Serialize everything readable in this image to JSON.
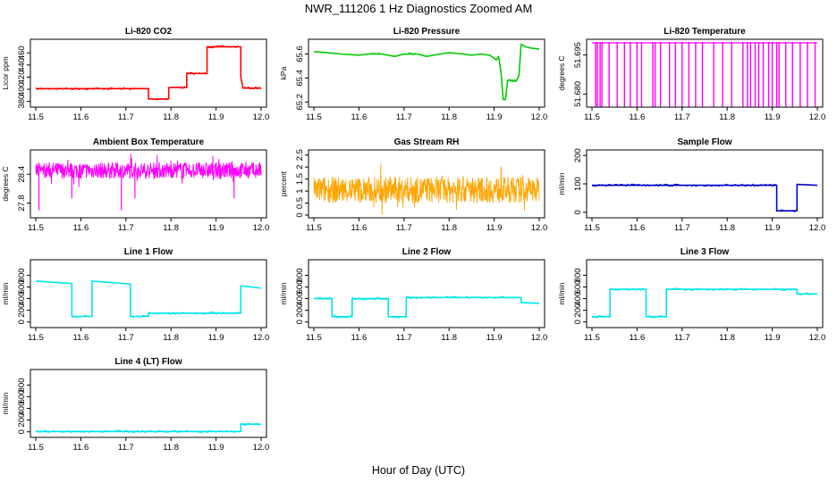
{
  "title": "NWR_111206  1 Hz Diagnostics Zoomed AM",
  "xlabel": "Hour of Day (UTC)",
  "chart_data": [
    {
      "type": "line",
      "title": "Li-820 CO2",
      "ylabel": "Licor ppm",
      "color": "#ff0000",
      "xlim": [
        11.5,
        12.0
      ],
      "ylim": [
        375,
        478
      ],
      "yticks": [
        380,
        400,
        420,
        440,
        460
      ],
      "xticks": [
        11.5,
        11.6,
        11.7,
        11.8,
        11.9,
        12.0
      ],
      "style": "step",
      "series": [
        {
          "name": "CO2",
          "x": [
            11.5,
            11.75,
            11.75,
            11.76,
            11.76,
            11.795,
            11.795,
            11.835,
            11.835,
            11.88,
            11.88,
            11.955,
            11.955,
            11.96,
            11.96,
            12.0
          ],
          "y": [
            401,
            401,
            384,
            384,
            384,
            384,
            403,
            403,
            426,
            426,
            470,
            470,
            420,
            402,
            402,
            402
          ]
        }
      ]
    },
    {
      "type": "line",
      "title": "Li-820 Pressure",
      "ylabel": "kPa",
      "color": "#00cc00",
      "xlim": [
        11.5,
        12.0
      ],
      "ylim": [
        65.18,
        65.7
      ],
      "yticks": [
        65.2,
        65.4,
        65.6
      ],
      "ytick_labels": [
        "65.2",
        "65.4",
        "65.6"
      ],
      "xticks": [
        11.5,
        11.6,
        11.7,
        11.8,
        11.9,
        12.0
      ],
      "series": [
        {
          "name": "pressure",
          "x": [
            11.5,
            11.53,
            11.56,
            11.6,
            11.62,
            11.65,
            11.68,
            11.7,
            11.73,
            11.75,
            11.78,
            11.8,
            11.83,
            11.85,
            11.87,
            11.89,
            11.905,
            11.91,
            11.915,
            11.92,
            11.925,
            11.93,
            11.95,
            11.955,
            11.96,
            11.97,
            11.98,
            12.0
          ],
          "y": [
            65.62,
            65.61,
            65.6,
            65.59,
            65.6,
            65.6,
            65.58,
            65.6,
            65.6,
            65.58,
            65.6,
            65.61,
            65.6,
            65.59,
            65.6,
            65.59,
            65.55,
            65.58,
            65.45,
            65.22,
            65.22,
            65.38,
            65.38,
            65.42,
            65.68,
            65.66,
            65.65,
            65.64
          ]
        }
      ]
    },
    {
      "type": "line",
      "title": "Li-820 Temperature",
      "ylabel": "degrees C",
      "color": "#ff00ff",
      "xlim": [
        11.5,
        12.0
      ],
      "ylim": [
        51.676,
        51.7
      ],
      "yticks": [
        51.68,
        51.695
      ],
      "ytick_labels": [
        "51.680",
        "51.695"
      ],
      "xticks": [
        11.5,
        11.6,
        11.7,
        11.8,
        11.9,
        12.0
      ],
      "style": "spikes",
      "baseline": 51.7,
      "spikes": [
        11.508,
        11.512,
        11.518,
        11.522,
        11.538,
        11.556,
        11.572,
        11.585,
        11.6,
        11.61,
        11.635,
        11.64,
        11.652,
        11.672,
        11.685,
        11.7,
        11.715,
        11.73,
        11.745,
        11.77,
        11.79,
        11.81,
        11.835,
        11.845,
        11.852,
        11.862,
        11.87,
        11.88,
        11.892,
        11.9,
        11.91,
        11.915,
        11.93,
        11.945,
        11.962,
        11.978,
        11.995
      ]
    },
    {
      "type": "line",
      "title": "Ambient Box Temperature",
      "ylabel": "degrees C",
      "color": "#ff00ff",
      "xlim": [
        11.5,
        12.0
      ],
      "ylim": [
        27.55,
        28.85
      ],
      "yticks": [
        27.8,
        28.4
      ],
      "ytick_labels": [
        "27.8",
        "28.4"
      ],
      "xticks": [
        11.5,
        11.6,
        11.7,
        11.8,
        11.9,
        12.0
      ],
      "style": "noise",
      "center": 28.48,
      "spread": 0.34,
      "series": [
        {
          "name": "dips",
          "x": [
            11.507,
            11.58,
            11.69,
            11.72,
            11.94
          ],
          "y": [
            27.65,
            27.9,
            27.65,
            27.9,
            27.9
          ]
        }
      ]
    },
    {
      "type": "line",
      "title": "Gas Stream RH",
      "ylabel": "percent",
      "color": "#ffa500",
      "xlim": [
        11.5,
        12.0
      ],
      "ylim": [
        0.0,
        2.6
      ],
      "yticks": [
        0.0,
        0.5,
        1.0,
        1.5,
        2.0,
        2.5
      ],
      "xticks": [
        11.5,
        11.6,
        11.7,
        11.8,
        11.9,
        12.0
      ],
      "style": "noise",
      "center": 1.05,
      "spread": 1.1
    },
    {
      "type": "line",
      "title": "Sample Flow",
      "ylabel": "ml/min",
      "color": "#0000cc",
      "xlim": [
        11.5,
        12.0
      ],
      "ylim": [
        -10,
        210
      ],
      "yticks": [
        0,
        100,
        200
      ],
      "xticks": [
        11.5,
        11.6,
        11.7,
        11.8,
        11.9,
        12.0
      ],
      "style": "step",
      "series": [
        {
          "name": "flow",
          "x": [
            11.5,
            11.91,
            11.91,
            11.955,
            11.955,
            12.0
          ],
          "y": [
            95,
            95,
            5,
            5,
            98,
            95
          ]
        }
      ]
    },
    {
      "type": "line",
      "title": "Line 1 Flow",
      "ylabel": "ml/min",
      "color": "#00e5ee",
      "xlim": [
        11.5,
        12.0
      ],
      "ylim": [
        -50,
        1020
      ],
      "yticks": [
        0,
        200,
        400,
        600,
        800
      ],
      "xticks": [
        11.5,
        11.6,
        11.7,
        11.8,
        11.9,
        12.0
      ],
      "style": "step",
      "series": [
        {
          "name": "flow",
          "x": [
            11.5,
            11.58,
            11.58,
            11.625,
            11.625,
            11.71,
            11.71,
            11.75,
            11.75,
            11.955,
            11.955,
            12.0
          ],
          "y": [
            700,
            660,
            95,
            95,
            700,
            650,
            95,
            95,
            150,
            150,
            620,
            580
          ]
        }
      ]
    },
    {
      "type": "line",
      "title": "Line 2 Flow",
      "ylabel": "ml/min",
      "color": "#00e5ee",
      "xlim": [
        11.5,
        12.0
      ],
      "ylim": [
        -50,
        1020
      ],
      "yticks": [
        0,
        200,
        400,
        600,
        800
      ],
      "xticks": [
        11.5,
        11.6,
        11.7,
        11.8,
        11.9,
        12.0
      ],
      "style": "step",
      "series": [
        {
          "name": "flow",
          "x": [
            11.5,
            11.54,
            11.54,
            11.585,
            11.585,
            11.665,
            11.665,
            11.705,
            11.705,
            11.96,
            11.96,
            12.0
          ],
          "y": [
            400,
            400,
            90,
            90,
            400,
            400,
            90,
            90,
            420,
            420,
            330,
            320
          ]
        }
      ]
    },
    {
      "type": "line",
      "title": "Line 3 Flow",
      "ylabel": "ml/min",
      "color": "#00e5ee",
      "xlim": [
        11.5,
        12.0
      ],
      "ylim": [
        -50,
        1020
      ],
      "yticks": [
        0,
        200,
        400,
        600,
        800
      ],
      "xticks": [
        11.5,
        11.6,
        11.7,
        11.8,
        11.9,
        12.0
      ],
      "style": "step",
      "series": [
        {
          "name": "flow",
          "x": [
            11.5,
            11.54,
            11.54,
            11.62,
            11.62,
            11.665,
            11.665,
            11.955,
            11.955,
            12.0
          ],
          "y": [
            90,
            90,
            560,
            560,
            90,
            90,
            560,
            560,
            480,
            480
          ]
        }
      ]
    },
    {
      "type": "line",
      "title": "Line 4 (LT) Flow",
      "ylabel": "ml/min",
      "color": "#00e5ee",
      "xlim": [
        11.5,
        12.0
      ],
      "ylim": [
        -50,
        1020
      ],
      "yticks": [
        0,
        200,
        400,
        600,
        800
      ],
      "xticks": [
        11.5,
        11.6,
        11.7,
        11.8,
        11.9,
        12.0
      ],
      "style": "step",
      "series": [
        {
          "name": "flow",
          "x": [
            11.5,
            11.955,
            11.955,
            12.0
          ],
          "y": [
            5,
            5,
            130,
            130
          ]
        }
      ]
    }
  ]
}
